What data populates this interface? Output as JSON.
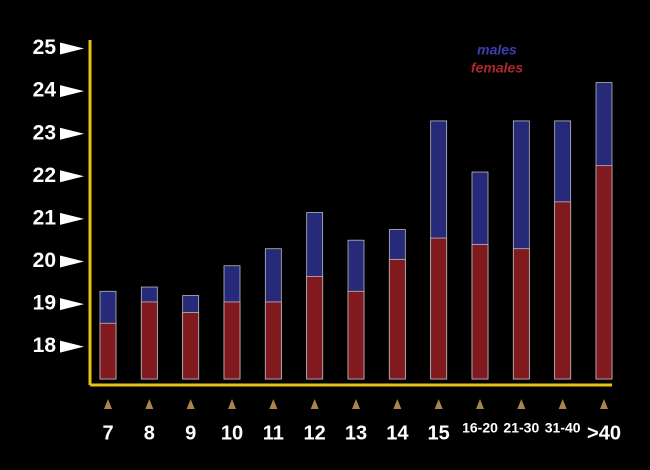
{
  "chart_data": {
    "type": "bar",
    "overlap": true,
    "categories": [
      "7",
      "8",
      "9",
      "10",
      "11",
      "12",
      "13",
      "14",
      "15",
      "16-20",
      "21-30",
      "31-40",
      ">40"
    ],
    "series": [
      {
        "name": "males",
        "color": "#262a78",
        "values": [
          19.3,
          19.4,
          19.2,
          19.9,
          20.3,
          21.15,
          20.5,
          20.75,
          23.3,
          22.1,
          23.3,
          23.3,
          24.2
        ]
      },
      {
        "name": "females",
        "color": "#801a1f",
        "values": [
          18.55,
          19.05,
          18.8,
          19.05,
          19.05,
          19.65,
          19.3,
          20.05,
          20.55,
          20.4,
          20.3,
          21.4,
          22.25
        ]
      }
    ],
    "ylim": [
      17.1,
      25.2
    ],
    "yticks": [
      18,
      19,
      20,
      21,
      22,
      23,
      24,
      25
    ],
    "grid": false
  }
}
